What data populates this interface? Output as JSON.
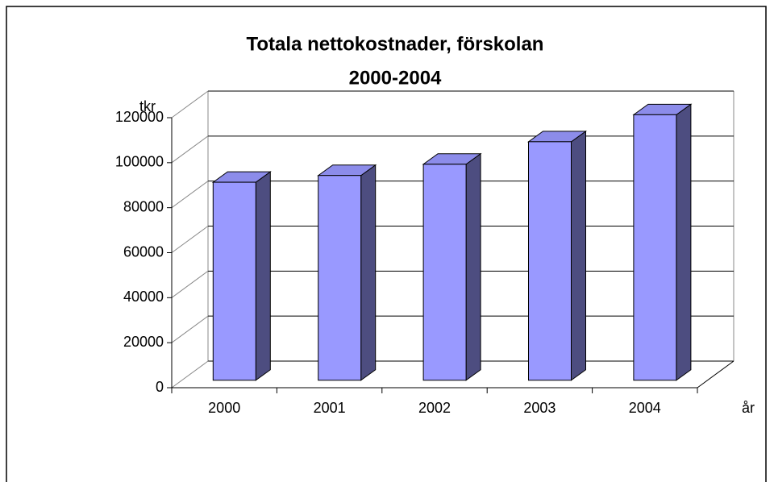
{
  "chart_data": {
    "type": "bar3d",
    "title": [
      "Totala nettokostnader, förskolan",
      "2000-2004"
    ],
    "y_label": "tkr",
    "x_label": "år",
    "categories": [
      "2000",
      "2001",
      "2002",
      "2003",
      "2004"
    ],
    "values": [
      88000,
      91000,
      96000,
      106000,
      118000
    ],
    "color": "#9999ff",
    "side_color": "#4d4d80",
    "top_color": "#8c8cea",
    "ylim": [
      0,
      120000
    ],
    "yticks": [
      0,
      20000,
      40000,
      60000,
      80000,
      100000,
      120000
    ],
    "grid": true
  }
}
